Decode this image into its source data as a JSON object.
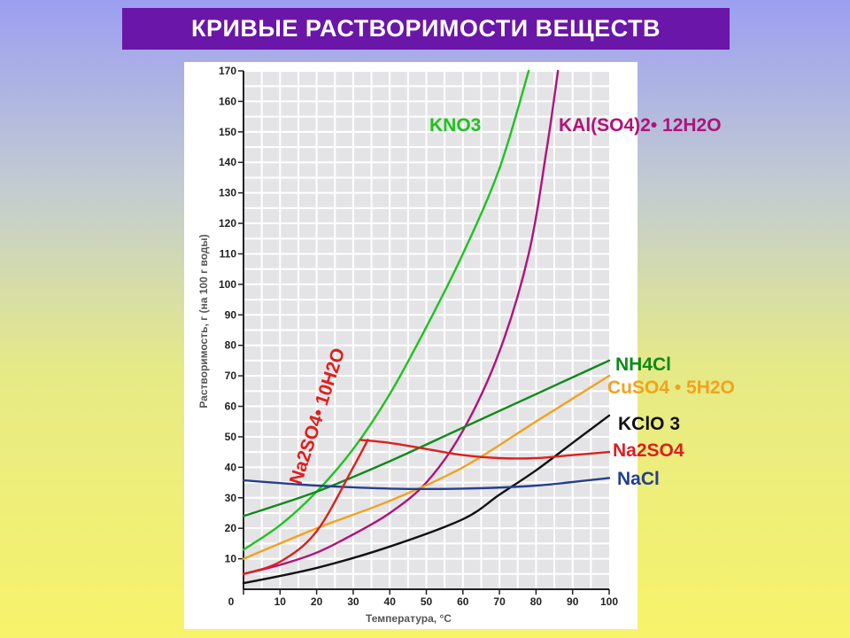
{
  "title": "КРИВЫЕ РАСТВОРИМОСТИ ВЕЩЕСТВ",
  "chart_data": {
    "type": "line",
    "xlabel": "Температура, °С",
    "ylabel": "Растворимость, г (на 100 г воды)",
    "xlim": [
      0,
      100
    ],
    "ylim": [
      0,
      170
    ],
    "xticks": [
      0,
      10,
      20,
      30,
      40,
      50,
      60,
      70,
      80,
      90,
      100
    ],
    "yticks": [
      10,
      20,
      30,
      40,
      50,
      60,
      70,
      80,
      90,
      100,
      110,
      120,
      130,
      140,
      150,
      160,
      170
    ],
    "grid": true,
    "series": [
      {
        "name": "KNO3",
        "color": "#1fc21f",
        "points": [
          [
            0,
            13
          ],
          [
            10,
            21
          ],
          [
            20,
            32
          ],
          [
            30,
            46
          ],
          [
            40,
            64
          ],
          [
            50,
            86
          ],
          [
            60,
            110
          ],
          [
            70,
            138
          ],
          [
            78,
            170
          ]
        ]
      },
      {
        "name": "KAl(SO4)2• 12H2O",
        "color": "#b0127a",
        "points": [
          [
            0,
            5
          ],
          [
            10,
            8
          ],
          [
            20,
            12
          ],
          [
            30,
            18
          ],
          [
            40,
            25
          ],
          [
            50,
            35
          ],
          [
            60,
            52
          ],
          [
            70,
            78
          ],
          [
            78,
            110
          ],
          [
            83,
            145
          ],
          [
            86,
            170
          ]
        ]
      },
      {
        "name": "NH4Cl",
        "color": "#0f8a1a",
        "points": [
          [
            0,
            24
          ],
          [
            20,
            32
          ],
          [
            40,
            42
          ],
          [
            60,
            53
          ],
          [
            80,
            64
          ],
          [
            100,
            75
          ]
        ]
      },
      {
        "name": "CuSO4 • 5H2O",
        "color": "#f2a21f",
        "points": [
          [
            0,
            10
          ],
          [
            20,
            20
          ],
          [
            40,
            29
          ],
          [
            60,
            40
          ],
          [
            80,
            55
          ],
          [
            100,
            70
          ]
        ]
      },
      {
        "name": "KClO 3",
        "color": "#111111",
        "points": [
          [
            0,
            2
          ],
          [
            20,
            7
          ],
          [
            40,
            14
          ],
          [
            60,
            23
          ],
          [
            70,
            31
          ],
          [
            80,
            39
          ],
          [
            90,
            48
          ],
          [
            100,
            57
          ]
        ]
      },
      {
        "name": "Na2SO4",
        "color": "#dd1f1f",
        "points": [
          [
            32,
            49
          ],
          [
            40,
            48
          ],
          [
            50,
            46
          ],
          [
            60,
            44
          ],
          [
            70,
            43
          ],
          [
            80,
            43
          ],
          [
            90,
            44
          ],
          [
            100,
            45
          ]
        ]
      },
      {
        "name": "NaCl",
        "color": "#253f8f",
        "points": [
          [
            0,
            35.7
          ],
          [
            20,
            34
          ],
          [
            40,
            33
          ],
          [
            60,
            33
          ],
          [
            80,
            34
          ],
          [
            100,
            36.5
          ]
        ]
      },
      {
        "name": "Na2SO4• 10H2O",
        "color": "#dd1f1f",
        "points": [
          [
            0,
            5
          ],
          [
            10,
            9
          ],
          [
            20,
            19
          ],
          [
            30,
            40
          ],
          [
            34,
            49
          ]
        ]
      }
    ]
  }
}
